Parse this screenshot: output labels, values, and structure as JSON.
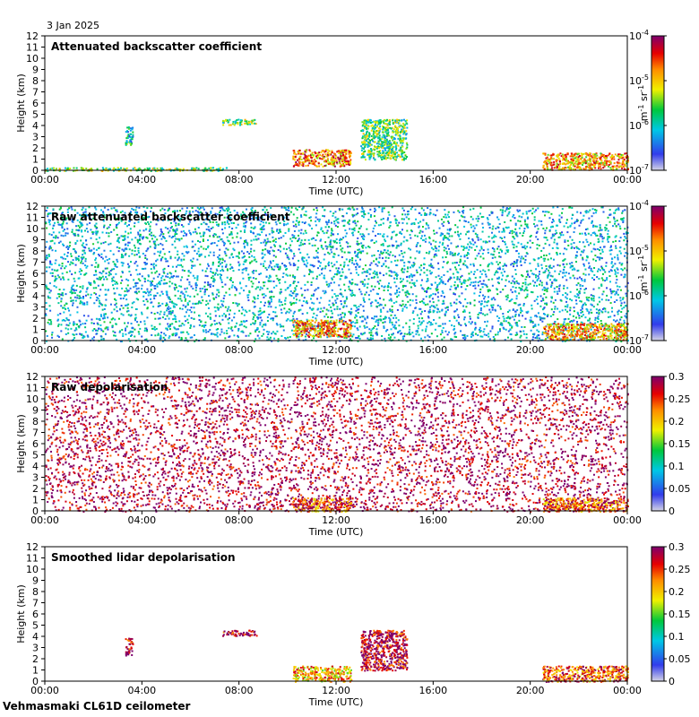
{
  "header": {
    "date": "3 Jan 2025"
  },
  "footer": {
    "site_label": "Vehmasmaki CL61D ceilometer"
  },
  "chart_data": [
    {
      "type": "heatmap",
      "title": "Attenuated backscatter coefficient",
      "xlabel": "Time (UTC)",
      "ylabel": "Height (km)",
      "x_ticks": [
        "00:00",
        "04:00",
        "08:00",
        "12:00",
        "16:00",
        "20:00",
        "00:00"
      ],
      "y_ticks": [
        0,
        1,
        2,
        3,
        4,
        5,
        6,
        7,
        8,
        9,
        10,
        11,
        12
      ],
      "xlim_hours": [
        0,
        24
      ],
      "ylim_km": [
        0,
        12
      ],
      "colorbar": {
        "scale": "log",
        "ticks": [
          "10-7",
          "10-6",
          "10-5",
          "10-4"
        ],
        "base": "10",
        "exponents": [
          "-7",
          "-6",
          "-5",
          "-4"
        ],
        "unit_label": "m-1 sr-1"
      },
      "features": [
        {
          "name": "near-surface layer",
          "start_h": 0,
          "end_h": 7.5,
          "bottom_km": 0,
          "top_km": 0.3,
          "level": 0.5
        },
        {
          "name": "aerosol patch",
          "start_h": 3.3,
          "end_h": 3.6,
          "bottom_km": 2.3,
          "top_km": 4.0,
          "level": 0.35
        },
        {
          "name": "elevated layer",
          "start_h": 7.3,
          "end_h": 8.7,
          "bottom_km": 4.1,
          "top_km": 4.6,
          "level": 0.5
        },
        {
          "name": "cloud base layer",
          "start_h": 10.2,
          "end_h": 12.6,
          "bottom_km": 0.4,
          "top_km": 1.9,
          "level": 0.75
        },
        {
          "name": "elevated cloud",
          "start_h": 13.0,
          "end_h": 14.9,
          "bottom_km": 1.0,
          "top_km": 4.6,
          "level": 0.45
        },
        {
          "name": "evening cloud",
          "start_h": 20.5,
          "end_h": 24,
          "bottom_km": 0.1,
          "top_km": 1.6,
          "level": 0.7
        }
      ]
    },
    {
      "type": "heatmap",
      "title": "Raw attenuated backscatter coefficient",
      "xlabel": "Time (UTC)",
      "ylabel": "Height (km)",
      "x_ticks": [
        "00:00",
        "04:00",
        "08:00",
        "12:00",
        "16:00",
        "20:00",
        "00:00"
      ],
      "y_ticks": [
        0,
        1,
        2,
        3,
        4,
        5,
        6,
        7,
        8,
        9,
        10,
        11,
        12
      ],
      "xlim_hours": [
        0,
        24
      ],
      "ylim_km": [
        0,
        12
      ],
      "colorbar": {
        "scale": "log",
        "ticks": [
          "10-7",
          "10-6",
          "10-5",
          "10-4"
        ],
        "base": "10",
        "exponents": [
          "-7",
          "-6",
          "-5",
          "-4"
        ],
        "unit_label": "m-1 sr-1"
      },
      "features": [
        {
          "name": "noise background",
          "start_h": 0,
          "end_h": 24,
          "bottom_km": 0,
          "top_km": 12,
          "level": 0.3
        },
        {
          "name": "cloud base layer",
          "start_h": 10.2,
          "end_h": 12.6,
          "bottom_km": 0.4,
          "top_km": 1.9,
          "level": 0.75
        },
        {
          "name": "evening cloud",
          "start_h": 20.5,
          "end_h": 24,
          "bottom_km": 0.1,
          "top_km": 1.6,
          "level": 0.7
        }
      ]
    },
    {
      "type": "heatmap",
      "title": "Raw depolarisation",
      "xlabel": "Time (UTC)",
      "ylabel": "Height (km)",
      "x_ticks": [
        "00:00",
        "04:00",
        "08:00",
        "12:00",
        "16:00",
        "20:00",
        "00:00"
      ],
      "y_ticks": [
        0,
        1,
        2,
        3,
        4,
        5,
        6,
        7,
        8,
        9,
        10,
        11,
        12
      ],
      "xlim_hours": [
        0,
        24
      ],
      "ylim_km": [
        0,
        12
      ],
      "colorbar": {
        "scale": "linear",
        "ticks": [
          "0",
          "0.05",
          "0.1",
          "0.15",
          "0.2",
          "0.25",
          "0.3"
        ]
      },
      "features": [
        {
          "name": "noise background",
          "start_h": 0,
          "end_h": 24,
          "bottom_km": 0,
          "top_km": 12,
          "level": 0.95
        },
        {
          "name": "cloud base layer",
          "start_h": 10.2,
          "end_h": 12.6,
          "bottom_km": 0.0,
          "top_km": 1.2,
          "level": 0.8
        },
        {
          "name": "evening cloud",
          "start_h": 20.5,
          "end_h": 24,
          "bottom_km": 0.0,
          "top_km": 1.2,
          "level": 0.8
        }
      ]
    },
    {
      "type": "heatmap",
      "title": "Smoothed lidar depolarisation",
      "xlabel": "Time (UTC)",
      "ylabel": "Height (km)",
      "x_ticks": [
        "00:00",
        "04:00",
        "08:00",
        "12:00",
        "16:00",
        "20:00",
        "00:00"
      ],
      "y_ticks": [
        0,
        1,
        2,
        3,
        4,
        5,
        6,
        7,
        8,
        9,
        10,
        11,
        12
      ],
      "xlim_hours": [
        0,
        24
      ],
      "ylim_km": [
        0,
        12
      ],
      "colorbar": {
        "scale": "linear",
        "ticks": [
          "0",
          "0.05",
          "0.1",
          "0.15",
          "0.2",
          "0.25",
          "0.3"
        ]
      },
      "features": [
        {
          "name": "aerosol patch",
          "start_h": 3.3,
          "end_h": 3.6,
          "bottom_km": 2.3,
          "top_km": 4.0,
          "level": 0.95
        },
        {
          "name": "elevated layer",
          "start_h": 7.3,
          "end_h": 8.7,
          "bottom_km": 4.1,
          "top_km": 4.6,
          "level": 0.95
        },
        {
          "name": "cloud base layer",
          "start_h": 10.2,
          "end_h": 12.6,
          "bottom_km": 0.0,
          "top_km": 1.4,
          "level": 0.7
        },
        {
          "name": "elevated cloud",
          "start_h": 13.0,
          "end_h": 14.9,
          "bottom_km": 1.0,
          "top_km": 4.6,
          "level": 0.95
        },
        {
          "name": "evening cloud",
          "start_h": 20.5,
          "end_h": 24,
          "bottom_km": 0.0,
          "top_km": 1.4,
          "level": 0.8
        }
      ]
    }
  ]
}
